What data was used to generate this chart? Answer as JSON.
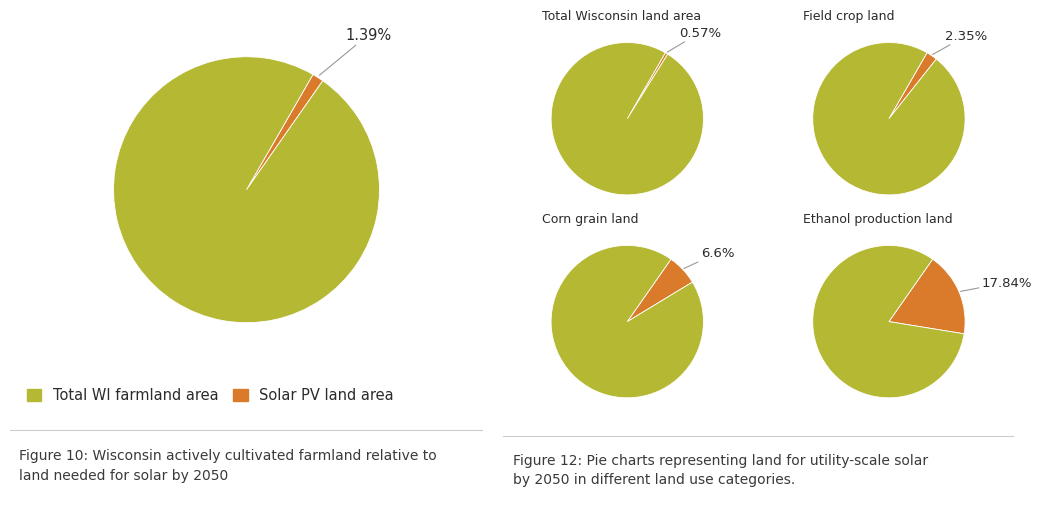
{
  "olive_color": "#b5b832",
  "orange_color": "#d97b2a",
  "bg_color": "#ffffff",
  "text_color": "#2b2b2b",
  "fig_caption_color": "#3a3a3a",
  "line_color": "#cccccc",
  "big_pie": {
    "solar_pct": 1.39,
    "label": "1.39%",
    "startangle": 60
  },
  "small_pies": [
    {
      "title": "Total Wisconsin land area",
      "solar_pct": 0.57,
      "label": "0.57%",
      "startangle": 60
    },
    {
      "title": "Field crop land",
      "solar_pct": 2.35,
      "label": "2.35%",
      "startangle": 60
    },
    {
      "title": "Corn grain land",
      "solar_pct": 6.6,
      "label": "6.6%",
      "startangle": 55
    },
    {
      "title": "Ethanol production land",
      "solar_pct": 17.84,
      "label": "17.84%",
      "startangle": 55
    }
  ],
  "legend_labels": [
    "Total WI farmland area",
    "Solar PV land area"
  ],
  "fig10_caption": "Figure 10: Wisconsin actively cultivated farmland relative to\nland needed for solar by 2050",
  "fig12_caption": "Figure 12: Pie charts representing land for utility-scale solar\nby 2050 in different land use categories.",
  "caption_fontsize": 10,
  "title_fontsize": 9,
  "label_fontsize": 9.5,
  "legend_fontsize": 10.5
}
